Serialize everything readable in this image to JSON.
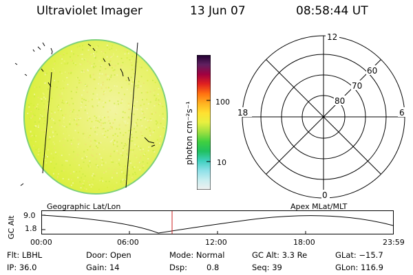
{
  "header": {
    "instrument": "Ultraviolet Imager",
    "date": "13 Jun 07",
    "time": "08:58:44 UT"
  },
  "colorbar": {
    "unit_label": "photon cm⁻²s⁻¹",
    "ticks": [
      "100",
      "10"
    ],
    "stops": [
      "#f0f0f0",
      "#c8eef0",
      "#8ee0e8",
      "#40d0c0",
      "#20c060",
      "#40d040",
      "#a0e040",
      "#e8f040",
      "#ffe030",
      "#ffb020",
      "#ff7010",
      "#e02020",
      "#a00040",
      "#602060",
      "#200030"
    ]
  },
  "polar": {
    "mlt_labels": {
      "top": "12",
      "left": "18",
      "right": "6",
      "bottom": "0"
    },
    "lat_labels": [
      "60",
      "70",
      "80"
    ]
  },
  "timeline": {
    "left_label": "Geographic Lat/Lon",
    "right_label": "Apex MLat/MLT",
    "axis_label": "GC Alt",
    "y_ticks": [
      "9.0",
      "1.8"
    ],
    "x_ticks": [
      "00:00",
      "06:00",
      "12:00",
      "18:00",
      "23:59"
    ]
  },
  "footer": {
    "filter": "Flt: LBHL",
    "ip": "IP: 36.0",
    "door": "Door: Open",
    "gain": "Gain: 14",
    "mode": "Mode: Normal",
    "dsp_label": "Dsp:",
    "dsp_value": "0.8",
    "gc_alt": "GC Alt: 3.3 Re",
    "seq": "Seq: 39",
    "glat": "GLat: −15.7",
    "glon": "GLon: 116.9"
  },
  "colors": {
    "disk_main": "#e4f24a",
    "disk_light": "#f2f4a0",
    "disk_edge": "#7ed07a",
    "marker": "#cc2222"
  }
}
